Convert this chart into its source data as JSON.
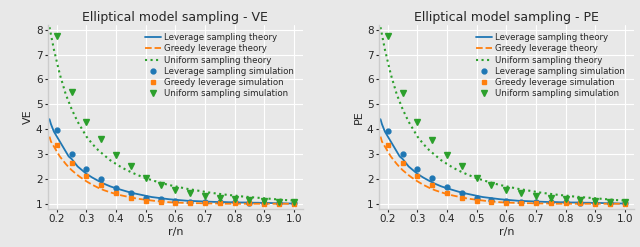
{
  "title_left": "Elliptical model sampling - VE",
  "title_right": "Elliptical model sampling - PE",
  "xlabel": "r/n",
  "ylabel_left": "VE",
  "ylabel_right": "PE",
  "xlim": [
    0.17,
    1.03
  ],
  "ylim": [
    0.8,
    8.2
  ],
  "yticks": [
    1,
    2,
    3,
    4,
    5,
    6,
    7,
    8
  ],
  "xticks": [
    0.2,
    0.3,
    0.4,
    0.5,
    0.6,
    0.7,
    0.8,
    0.9,
    1.0
  ],
  "r_theory": [
    0.175,
    0.18,
    0.19,
    0.2,
    0.21,
    0.22,
    0.23,
    0.24,
    0.25,
    0.26,
    0.27,
    0.28,
    0.29,
    0.3,
    0.32,
    0.34,
    0.36,
    0.38,
    0.4,
    0.42,
    0.44,
    0.46,
    0.48,
    0.5,
    0.52,
    0.54,
    0.56,
    0.58,
    0.6,
    0.62,
    0.64,
    0.66,
    0.68,
    0.7,
    0.72,
    0.74,
    0.76,
    0.78,
    0.8,
    0.82,
    0.84,
    0.86,
    0.88,
    0.9,
    0.92,
    0.94,
    0.96,
    0.98,
    1.0
  ],
  "r_sim": [
    0.2,
    0.25,
    0.3,
    0.35,
    0.4,
    0.45,
    0.5,
    0.55,
    0.6,
    0.65,
    0.7,
    0.75,
    0.8,
    0.85,
    0.9,
    0.95,
    1.0
  ],
  "VE_leverage_theory": [
    4.4,
    4.2,
    3.9,
    3.7,
    3.5,
    3.3,
    3.1,
    2.9,
    2.8,
    2.65,
    2.5,
    2.4,
    2.3,
    2.2,
    2.05,
    1.92,
    1.8,
    1.7,
    1.62,
    1.55,
    1.48,
    1.42,
    1.37,
    1.32,
    1.27,
    1.24,
    1.21,
    1.18,
    1.16,
    1.14,
    1.12,
    1.11,
    1.1,
    1.09,
    1.08,
    1.07,
    1.07,
    1.06,
    1.06,
    1.05,
    1.05,
    1.04,
    1.04,
    1.03,
    1.03,
    1.02,
    1.02,
    1.01,
    1.01
  ],
  "VE_greedy_theory": [
    3.7,
    3.5,
    3.3,
    3.1,
    2.9,
    2.75,
    2.6,
    2.47,
    2.35,
    2.25,
    2.15,
    2.06,
    1.98,
    1.9,
    1.76,
    1.64,
    1.54,
    1.46,
    1.39,
    1.33,
    1.28,
    1.23,
    1.19,
    1.16,
    1.13,
    1.1,
    1.08,
    1.06,
    1.05,
    1.04,
    1.03,
    1.02,
    1.02,
    1.01,
    1.01,
    1.01,
    1.0,
    1.0,
    1.0,
    1.0,
    1.0,
    1.0,
    1.0,
    1.0,
    1.0,
    1.0,
    1.0,
    1.0,
    1.0
  ],
  "VE_uniform_theory": [
    8.1,
    7.8,
    7.2,
    6.7,
    6.2,
    5.8,
    5.4,
    5.1,
    4.8,
    4.55,
    4.3,
    4.1,
    3.9,
    3.7,
    3.4,
    3.15,
    2.95,
    2.75,
    2.6,
    2.45,
    2.33,
    2.22,
    2.12,
    2.03,
    1.95,
    1.88,
    1.81,
    1.75,
    1.7,
    1.65,
    1.6,
    1.56,
    1.52,
    1.48,
    1.44,
    1.41,
    1.38,
    1.35,
    1.33,
    1.3,
    1.28,
    1.26,
    1.24,
    1.22,
    1.2,
    1.18,
    1.16,
    1.14,
    1.13
  ],
  "VE_leverage_sim": [
    3.97,
    3.02,
    2.4,
    2.0,
    1.65,
    1.42,
    1.25,
    1.18,
    1.12,
    1.09,
    1.07,
    1.06,
    1.05,
    1.04,
    1.04,
    1.03,
    1.02
  ],
  "VE_greedy_sim": [
    3.35,
    2.65,
    2.1,
    1.75,
    1.42,
    1.22,
    1.1,
    1.06,
    1.04,
    1.03,
    1.02,
    1.01,
    1.01,
    1.01,
    1.0,
    1.0,
    1.0
  ],
  "VE_uniform_sim": [
    7.75,
    5.48,
    4.3,
    3.6,
    2.98,
    2.5,
    2.02,
    1.77,
    1.55,
    1.43,
    1.33,
    1.25,
    1.2,
    1.16,
    1.12,
    1.09,
    1.05
  ],
  "PE_leverage_theory": [
    4.4,
    4.2,
    3.9,
    3.7,
    3.5,
    3.3,
    3.1,
    2.9,
    2.8,
    2.65,
    2.5,
    2.4,
    2.3,
    2.2,
    2.05,
    1.92,
    1.8,
    1.7,
    1.62,
    1.55,
    1.48,
    1.42,
    1.37,
    1.32,
    1.27,
    1.24,
    1.21,
    1.18,
    1.16,
    1.14,
    1.12,
    1.11,
    1.1,
    1.09,
    1.08,
    1.07,
    1.07,
    1.06,
    1.06,
    1.05,
    1.05,
    1.04,
    1.04,
    1.03,
    1.03,
    1.02,
    1.02,
    1.01,
    1.01
  ],
  "PE_greedy_theory": [
    3.7,
    3.5,
    3.3,
    3.1,
    2.9,
    2.75,
    2.6,
    2.47,
    2.35,
    2.25,
    2.15,
    2.06,
    1.98,
    1.9,
    1.76,
    1.64,
    1.54,
    1.46,
    1.39,
    1.33,
    1.28,
    1.23,
    1.19,
    1.16,
    1.13,
    1.1,
    1.08,
    1.06,
    1.05,
    1.04,
    1.03,
    1.02,
    1.02,
    1.01,
    1.01,
    1.01,
    1.0,
    1.0,
    1.0,
    1.0,
    1.0,
    1.0,
    1.0,
    1.0,
    1.0,
    1.0,
    1.0,
    1.0,
    1.0
  ],
  "PE_uniform_theory": [
    8.1,
    7.8,
    7.2,
    6.7,
    6.2,
    5.8,
    5.4,
    5.1,
    4.8,
    4.55,
    4.3,
    4.1,
    3.9,
    3.7,
    3.4,
    3.15,
    2.95,
    2.75,
    2.6,
    2.45,
    2.33,
    2.22,
    2.12,
    2.03,
    1.95,
    1.88,
    1.81,
    1.75,
    1.7,
    1.65,
    1.6,
    1.56,
    1.52,
    1.48,
    1.44,
    1.41,
    1.38,
    1.35,
    1.33,
    1.3,
    1.28,
    1.26,
    1.24,
    1.22,
    1.2,
    1.18,
    1.16,
    1.14,
    1.13
  ],
  "PE_leverage_sim": [
    3.92,
    3.01,
    2.38,
    2.02,
    1.67,
    1.44,
    1.22,
    1.15,
    1.12,
    1.09,
    1.07,
    1.06,
    1.05,
    1.04,
    1.03,
    1.03,
    1.02
  ],
  "PE_greedy_sim": [
    3.35,
    2.63,
    2.1,
    1.75,
    1.43,
    1.22,
    1.11,
    1.06,
    1.04,
    1.03,
    1.02,
    1.01,
    1.01,
    1.01,
    1.0,
    1.0,
    1.0
  ],
  "PE_uniform_sim": [
    7.75,
    5.45,
    4.28,
    3.58,
    2.97,
    2.5,
    2.03,
    1.76,
    1.56,
    1.44,
    1.33,
    1.25,
    1.2,
    1.16,
    1.12,
    1.09,
    1.05
  ],
  "color_leverage": "#1f77b4",
  "color_greedy": "#ff7f0e",
  "color_uniform": "#2ca02c",
  "bg_color": "#e8e8e8",
  "legend_fontsize": 6.2,
  "title_fontsize": 9,
  "label_fontsize": 8,
  "tick_fontsize": 7.5
}
